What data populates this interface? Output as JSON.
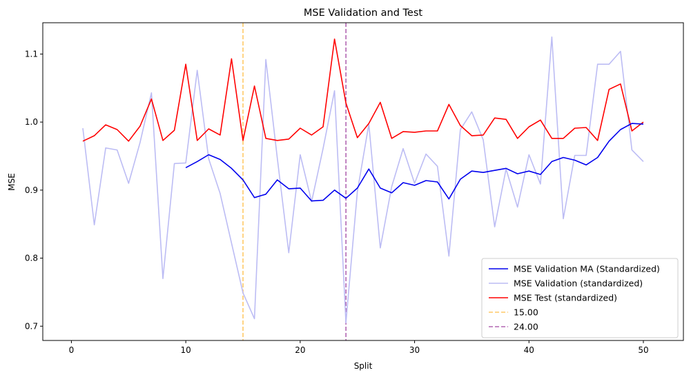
{
  "chart_data": {
    "type": "line",
    "title": "MSE Validation and Test",
    "xlabel": "Split",
    "ylabel": "MSE",
    "xlim": [
      -2.5,
      53.5
    ],
    "ylim": [
      0.679,
      1.146
    ],
    "xticks": [
      0,
      10,
      20,
      30,
      40,
      50
    ],
    "yticks": [
      0.7,
      0.8,
      0.9,
      1.0,
      1.1
    ],
    "ytick_labels": [
      "0.7",
      "0.8",
      "0.9",
      "1.0",
      "1.1"
    ],
    "grid": false,
    "legend_position": "lower right",
    "series": [
      {
        "name": "MSE Validation MA (Standardized)",
        "color": "#0000ee",
        "x": [
          10,
          11,
          12,
          13,
          14,
          15,
          16,
          17,
          18,
          19,
          20,
          21,
          22,
          23,
          24,
          25,
          26,
          27,
          28,
          29,
          30,
          31,
          32,
          33,
          34,
          35,
          36,
          37,
          38,
          39,
          40,
          41,
          42,
          43,
          44,
          45,
          46,
          47,
          48,
          49,
          50
        ],
        "values": [
          0.933,
          0.942,
          0.952,
          0.945,
          0.932,
          0.915,
          0.889,
          0.894,
          0.915,
          0.902,
          0.903,
          0.884,
          0.885,
          0.9,
          0.888,
          0.903,
          0.931,
          0.903,
          0.896,
          0.911,
          0.907,
          0.914,
          0.912,
          0.887,
          0.916,
          0.928,
          0.926,
          0.929,
          0.932,
          0.924,
          0.928,
          0.923,
          0.942,
          0.948,
          0.944,
          0.937,
          0.948,
          0.972,
          0.989,
          0.998,
          0.997
        ]
      },
      {
        "name": "MSE Validation (standardized)",
        "color": "#bcbcf4",
        "x": [
          1,
          2,
          3,
          4,
          5,
          6,
          7,
          8,
          9,
          10,
          11,
          12,
          13,
          14,
          15,
          16,
          17,
          18,
          19,
          20,
          21,
          22,
          23,
          24,
          25,
          26,
          27,
          28,
          29,
          30,
          31,
          32,
          33,
          34,
          35,
          36,
          37,
          38,
          39,
          40,
          41,
          42,
          43,
          44,
          45,
          46,
          47,
          48,
          49,
          50
        ],
        "values": [
          0.991,
          0.849,
          0.962,
          0.959,
          0.91,
          0.97,
          1.043,
          0.77,
          0.939,
          0.94,
          1.076,
          0.946,
          0.895,
          0.822,
          0.749,
          0.711,
          1.092,
          0.947,
          0.808,
          0.952,
          0.883,
          0.961,
          1.046,
          0.705,
          0.898,
          0.997,
          0.815,
          0.905,
          0.961,
          0.91,
          0.953,
          0.935,
          0.803,
          0.989,
          1.015,
          0.974,
          0.846,
          0.931,
          0.875,
          0.952,
          0.909,
          1.125,
          0.858,
          0.951,
          0.951,
          1.085,
          1.085,
          1.104,
          0.959,
          0.942
        ]
      },
      {
        "name": "MSE Test (standardized)",
        "color": "#ff0000",
        "x": [
          1,
          2,
          3,
          4,
          5,
          6,
          7,
          8,
          9,
          10,
          11,
          12,
          13,
          14,
          15,
          16,
          17,
          18,
          19,
          20,
          21,
          22,
          23,
          24,
          25,
          26,
          27,
          28,
          29,
          30,
          31,
          32,
          33,
          34,
          35,
          36,
          37,
          38,
          39,
          40,
          41,
          42,
          43,
          44,
          45,
          46,
          47,
          48,
          49,
          50
        ],
        "values": [
          0.972,
          0.98,
          0.996,
          0.989,
          0.972,
          0.994,
          1.034,
          0.973,
          0.988,
          1.085,
          0.973,
          0.99,
          0.981,
          1.093,
          0.973,
          1.053,
          0.976,
          0.973,
          0.975,
          0.991,
          0.981,
          0.993,
          1.122,
          1.028,
          0.977,
          0.998,
          1.029,
          0.976,
          0.986,
          0.985,
          0.987,
          0.987,
          1.026,
          0.995,
          0.98,
          0.981,
          1.006,
          1.004,
          0.976,
          0.993,
          1.003,
          0.976,
          0.976,
          0.991,
          0.992,
          0.973,
          1.048,
          1.056,
          0.987,
          1.0
        ]
      }
    ],
    "vlines": [
      {
        "name": "15.00",
        "x": 15,
        "color": "#ffc966"
      },
      {
        "name": "24.00",
        "x": 24,
        "color": "#b266b2"
      }
    ]
  }
}
